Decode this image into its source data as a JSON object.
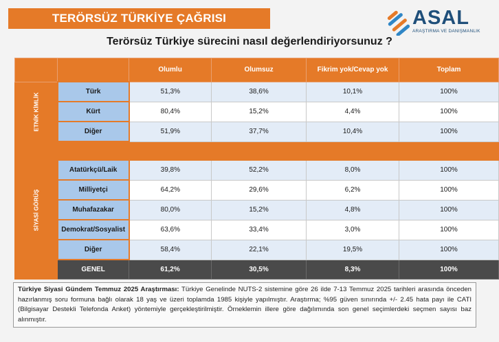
{
  "banner_title": "TERÖRSÜZ TÜRKİYE ÇAĞRISI",
  "logo": {
    "name": "ASAL",
    "subtitle": "ARAŞTIRMA VE DANIŞMANLIK"
  },
  "question": "Terörsüz Türkiye sürecini nasıl değerlendiriyorsunuz ?",
  "columns": [
    "Olumlu",
    "Olumsuz",
    "Fikrim yok/Cevap yok",
    "Toplam"
  ],
  "groups": {
    "etnik": {
      "label": "ETNİK KİMLİK",
      "rows": [
        {
          "label": "Türk",
          "values": [
            "51,3%",
            "38,6%",
            "10,1%",
            "100%"
          ]
        },
        {
          "label": "Kürt",
          "values": [
            "80,4%",
            "15,2%",
            "4,4%",
            "100%"
          ]
        },
        {
          "label": "Diğer",
          "values": [
            "51,9%",
            "37,7%",
            "10,4%",
            "100%"
          ]
        }
      ]
    },
    "siyasi": {
      "label": "SİYASİ GÖRÜŞ",
      "rows": [
        {
          "label": "Atatürkçü/Laik",
          "values": [
            "39,8%",
            "52,2%",
            "8,0%",
            "100%"
          ]
        },
        {
          "label": "Milliyetçi",
          "values": [
            "64,2%",
            "29,6%",
            "6,2%",
            "100%"
          ]
        },
        {
          "label": "Muhafazakar",
          "values": [
            "80,0%",
            "15,2%",
            "4,8%",
            "100%"
          ]
        },
        {
          "label": "Demokrat/Sosyalist",
          "values": [
            "63,6%",
            "33,4%",
            "3,0%",
            "100%"
          ]
        },
        {
          "label": "Diğer",
          "values": [
            "58,4%",
            "22,1%",
            "19,5%",
            "100%"
          ]
        }
      ]
    }
  },
  "genel": {
    "label": "GENEL",
    "values": [
      "61,2%",
      "30,5%",
      "8,3%",
      "100%"
    ]
  },
  "note": {
    "bold": "Türkiye Siyasi Gündem Temmuz 2025 Araştırması:",
    "text": " Türkiye Genelinde NUTS-2 sistemine göre 26 ilde 7-13 Temmuz 2025 tarihleri arasında önceden hazırlanmış soru formuna bağlı olarak 18 yaş ve üzeri toplamda 1985 kişiyle yapılmıştır. Araştırma; %95 güven sınırında +/- 2.45 hata payı ile CATI (Bilgisayar Destekli Telefonda Anket) yöntemiyle gerçekleştirilmiştir. Örneklemin illere göre dağılımında son genel seçimlerdeki seçmen sayısı baz alınmıştır."
  },
  "colors": {
    "accent": "#e57a28",
    "label_bg": "#a9c8ea",
    "genel_bg": "#4a4a4a",
    "logo": "#1f4f7a"
  }
}
